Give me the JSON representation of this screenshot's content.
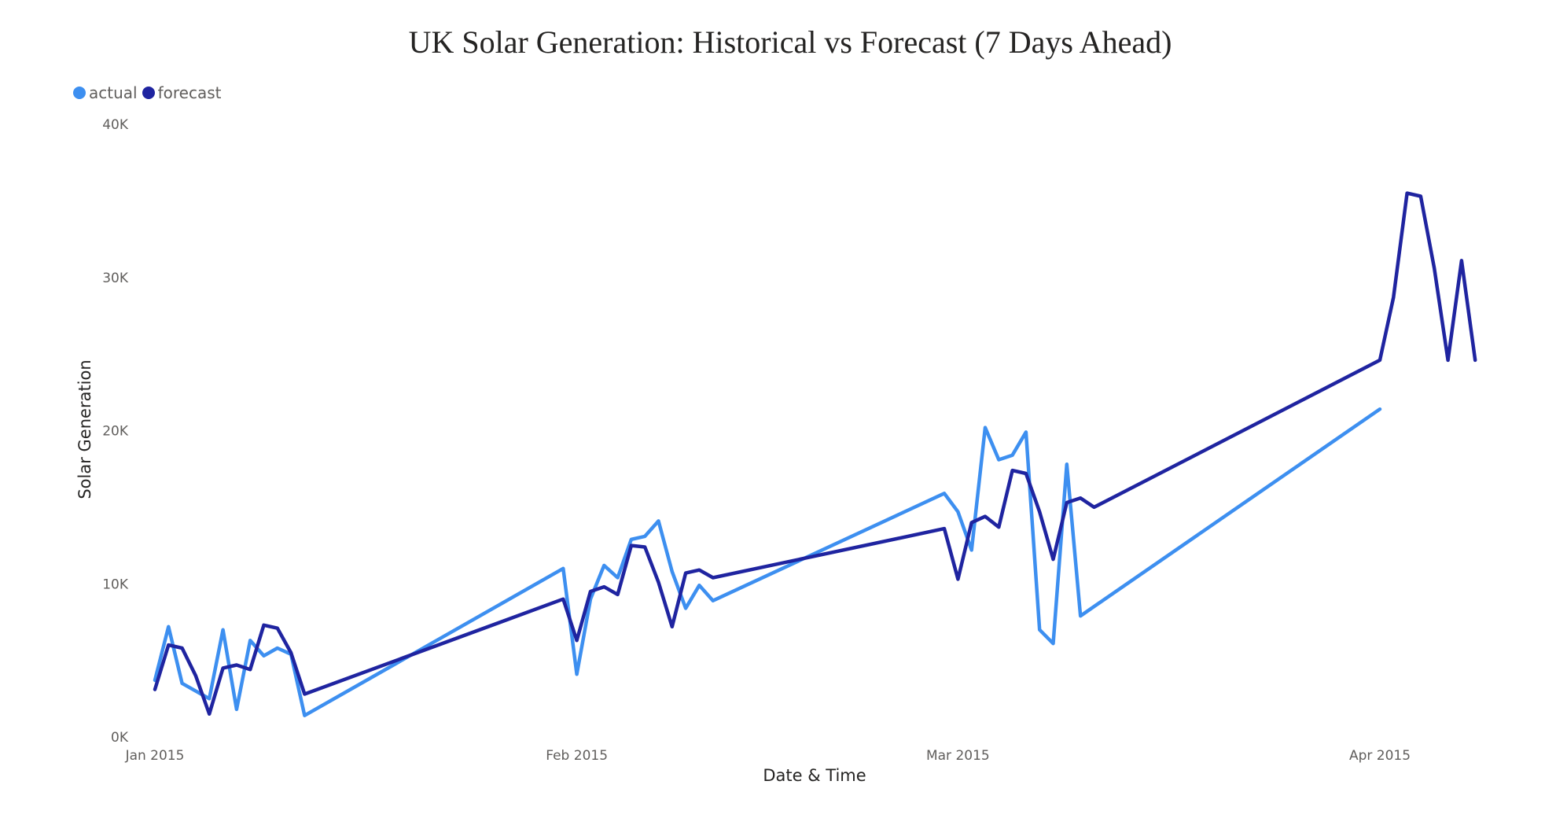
{
  "chart_data": {
    "type": "line",
    "title": "UK Solar Generation: Historical vs Forecast (7 Days Ahead)",
    "xlabel": "Date & Time",
    "ylabel": "Solar Generation",
    "ylim": [
      0,
      40000
    ],
    "y_ticks": [
      {
        "value": 0,
        "label": "0K"
      },
      {
        "value": 10000,
        "label": "10K"
      },
      {
        "value": 20000,
        "label": "20K"
      },
      {
        "value": 30000,
        "label": "30K"
      },
      {
        "value": 40000,
        "label": "40K"
      }
    ],
    "x_ticks": [
      {
        "date": "2015-01-01",
        "label": "Jan 2015"
      },
      {
        "date": "2015-02-01",
        "label": "Feb 2015"
      },
      {
        "date": "2015-03-01",
        "label": "Mar 2015"
      },
      {
        "date": "2015-04-01",
        "label": "Apr 2015"
      }
    ],
    "legend_position": "top-left",
    "grid": false,
    "series": [
      {
        "name": "actual",
        "color": "#3d8ff0",
        "points": [
          [
            "2015-01-01",
            3700
          ],
          [
            "2015-01-02",
            7200
          ],
          [
            "2015-01-03",
            3500
          ],
          [
            "2015-01-04",
            3000
          ],
          [
            "2015-01-05",
            2500
          ],
          [
            "2015-01-06",
            7000
          ],
          [
            "2015-01-07",
            1800
          ],
          [
            "2015-01-08",
            6300
          ],
          [
            "2015-01-09",
            5300
          ],
          [
            "2015-01-10",
            5800
          ],
          [
            "2015-01-11",
            5400
          ],
          [
            "2015-01-12",
            1400
          ],
          [
            "2015-01-31",
            11000
          ],
          [
            "2015-02-01",
            4100
          ],
          [
            "2015-02-02",
            9000
          ],
          [
            "2015-02-03",
            11200
          ],
          [
            "2015-02-04",
            10400
          ],
          [
            "2015-02-05",
            12900
          ],
          [
            "2015-02-06",
            13100
          ],
          [
            "2015-02-07",
            14100
          ],
          [
            "2015-02-08",
            10800
          ],
          [
            "2015-02-09",
            8400
          ],
          [
            "2015-02-10",
            9900
          ],
          [
            "2015-02-11",
            8900
          ],
          [
            "2015-02-28",
            15900
          ],
          [
            "2015-03-01",
            14700
          ],
          [
            "2015-03-02",
            12200
          ],
          [
            "2015-03-03",
            20200
          ],
          [
            "2015-03-04",
            18100
          ],
          [
            "2015-03-05",
            18400
          ],
          [
            "2015-03-06",
            19900
          ],
          [
            "2015-03-07",
            7000
          ],
          [
            "2015-03-08",
            6100
          ],
          [
            "2015-03-09",
            17800
          ],
          [
            "2015-03-10",
            7900
          ],
          [
            "2015-04-01",
            21400
          ]
        ]
      },
      {
        "name": "forecast",
        "color": "#1f24a0",
        "points": [
          [
            "2015-01-01",
            3100
          ],
          [
            "2015-01-02",
            6000
          ],
          [
            "2015-01-03",
            5800
          ],
          [
            "2015-01-04",
            4000
          ],
          [
            "2015-01-05",
            1500
          ],
          [
            "2015-01-06",
            4500
          ],
          [
            "2015-01-07",
            4700
          ],
          [
            "2015-01-08",
            4400
          ],
          [
            "2015-01-09",
            7300
          ],
          [
            "2015-01-10",
            7100
          ],
          [
            "2015-01-11",
            5500
          ],
          [
            "2015-01-12",
            2800
          ],
          [
            "2015-01-31",
            9000
          ],
          [
            "2015-02-01",
            6300
          ],
          [
            "2015-02-02",
            9500
          ],
          [
            "2015-02-03",
            9800
          ],
          [
            "2015-02-04",
            9300
          ],
          [
            "2015-02-05",
            12500
          ],
          [
            "2015-02-06",
            12400
          ],
          [
            "2015-02-07",
            10100
          ],
          [
            "2015-02-08",
            7200
          ],
          [
            "2015-02-09",
            10700
          ],
          [
            "2015-02-10",
            10900
          ],
          [
            "2015-02-11",
            10400
          ],
          [
            "2015-02-28",
            13600
          ],
          [
            "2015-03-01",
            10300
          ],
          [
            "2015-03-02",
            14000
          ],
          [
            "2015-03-03",
            14400
          ],
          [
            "2015-03-04",
            13700
          ],
          [
            "2015-03-05",
            17400
          ],
          [
            "2015-03-06",
            17200
          ],
          [
            "2015-03-07",
            14700
          ],
          [
            "2015-03-08",
            11600
          ],
          [
            "2015-03-09",
            15300
          ],
          [
            "2015-03-10",
            15600
          ],
          [
            "2015-03-11",
            15000
          ],
          [
            "2015-04-01",
            24600
          ],
          [
            "2015-04-02",
            28700
          ],
          [
            "2015-04-03",
            35500
          ],
          [
            "2015-04-04",
            35300
          ],
          [
            "2015-04-05",
            30600
          ],
          [
            "2015-04-06",
            24600
          ],
          [
            "2015-04-07",
            31100
          ],
          [
            "2015-04-08",
            24600
          ]
        ]
      }
    ]
  }
}
